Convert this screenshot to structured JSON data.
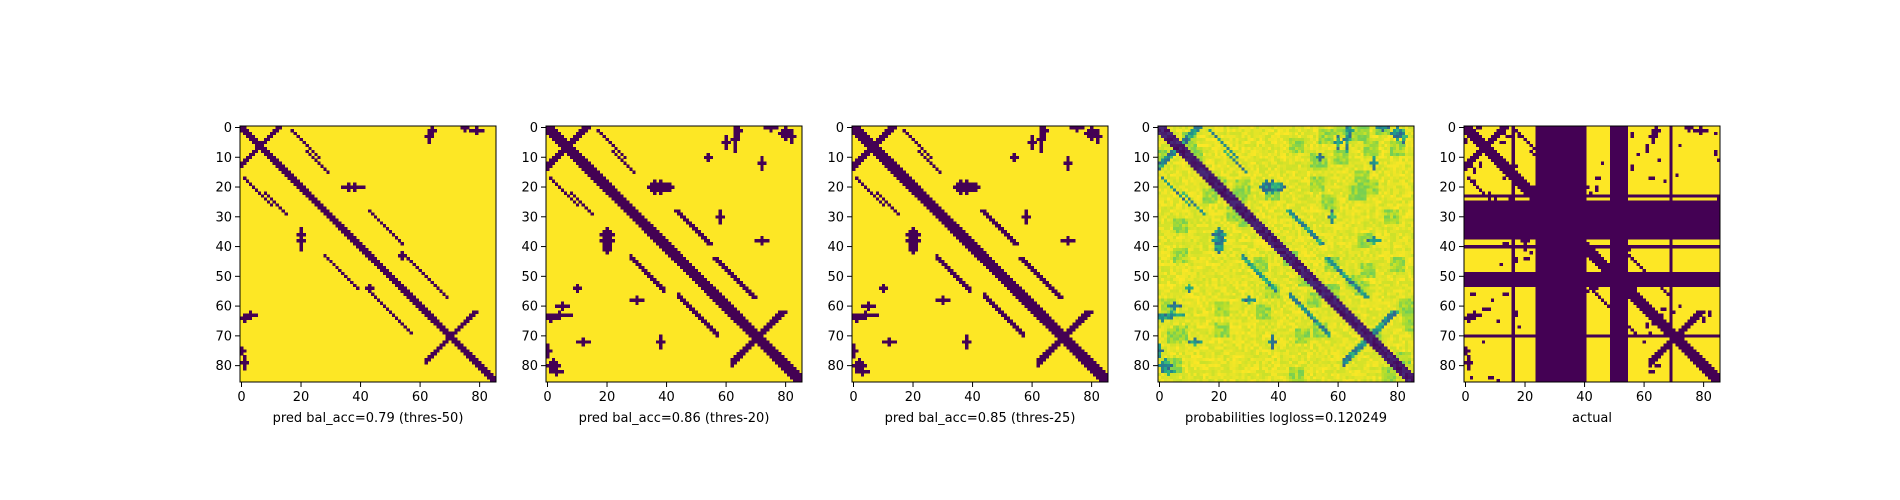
{
  "figure": {
    "background": "#ffffff"
  },
  "colors": {
    "contact": "#440154",
    "no_contact": "#fde725",
    "colormap": "viridis"
  },
  "chart_data": [
    {
      "type": "heatmap",
      "id": "panel-1",
      "xlabel": "pred bal_acc=0.79 (thres-50)",
      "matrix_size": 86,
      "xlim": [
        0,
        85
      ],
      "ylim": [
        85,
        0
      ],
      "xticks": [
        0,
        20,
        40,
        60,
        80
      ],
      "yticks": [
        0,
        10,
        20,
        30,
        40,
        50,
        60,
        70,
        80
      ],
      "value_kind": "binary"
    },
    {
      "type": "heatmap",
      "id": "panel-2",
      "xlabel": "pred bal_acc=0.86 (thres-20)",
      "matrix_size": 86,
      "xlim": [
        0,
        85
      ],
      "ylim": [
        85,
        0
      ],
      "xticks": [
        0,
        20,
        40,
        60,
        80
      ],
      "yticks": [
        0,
        10,
        20,
        30,
        40,
        50,
        60,
        70,
        80
      ],
      "value_kind": "binary"
    },
    {
      "type": "heatmap",
      "id": "panel-3",
      "xlabel": "pred bal_acc=0.85 (thres-25)",
      "matrix_size": 86,
      "xlim": [
        0,
        85
      ],
      "ylim": [
        85,
        0
      ],
      "xticks": [
        0,
        20,
        40,
        60,
        80
      ],
      "yticks": [
        0,
        10,
        20,
        30,
        40,
        50,
        60,
        70,
        80
      ],
      "value_kind": "binary"
    },
    {
      "type": "heatmap",
      "id": "panel-4",
      "xlabel": "probabilities logloss=0.120249",
      "matrix_size": 86,
      "xlim": [
        0,
        85
      ],
      "ylim": [
        85,
        0
      ],
      "xticks": [
        0,
        20,
        40,
        60,
        80
      ],
      "yticks": [
        0,
        10,
        20,
        30,
        40,
        50,
        60,
        70,
        80
      ],
      "value_kind": "probability"
    },
    {
      "type": "heatmap",
      "id": "panel-5",
      "xlabel": "actual",
      "matrix_size": 86,
      "xlim": [
        0,
        85
      ],
      "ylim": [
        85,
        0
      ],
      "xticks": [
        0,
        20,
        40,
        60,
        80
      ],
      "yticks": [
        0,
        10,
        20,
        30,
        40,
        50,
        60,
        70,
        80
      ],
      "value_kind": "binary"
    }
  ]
}
